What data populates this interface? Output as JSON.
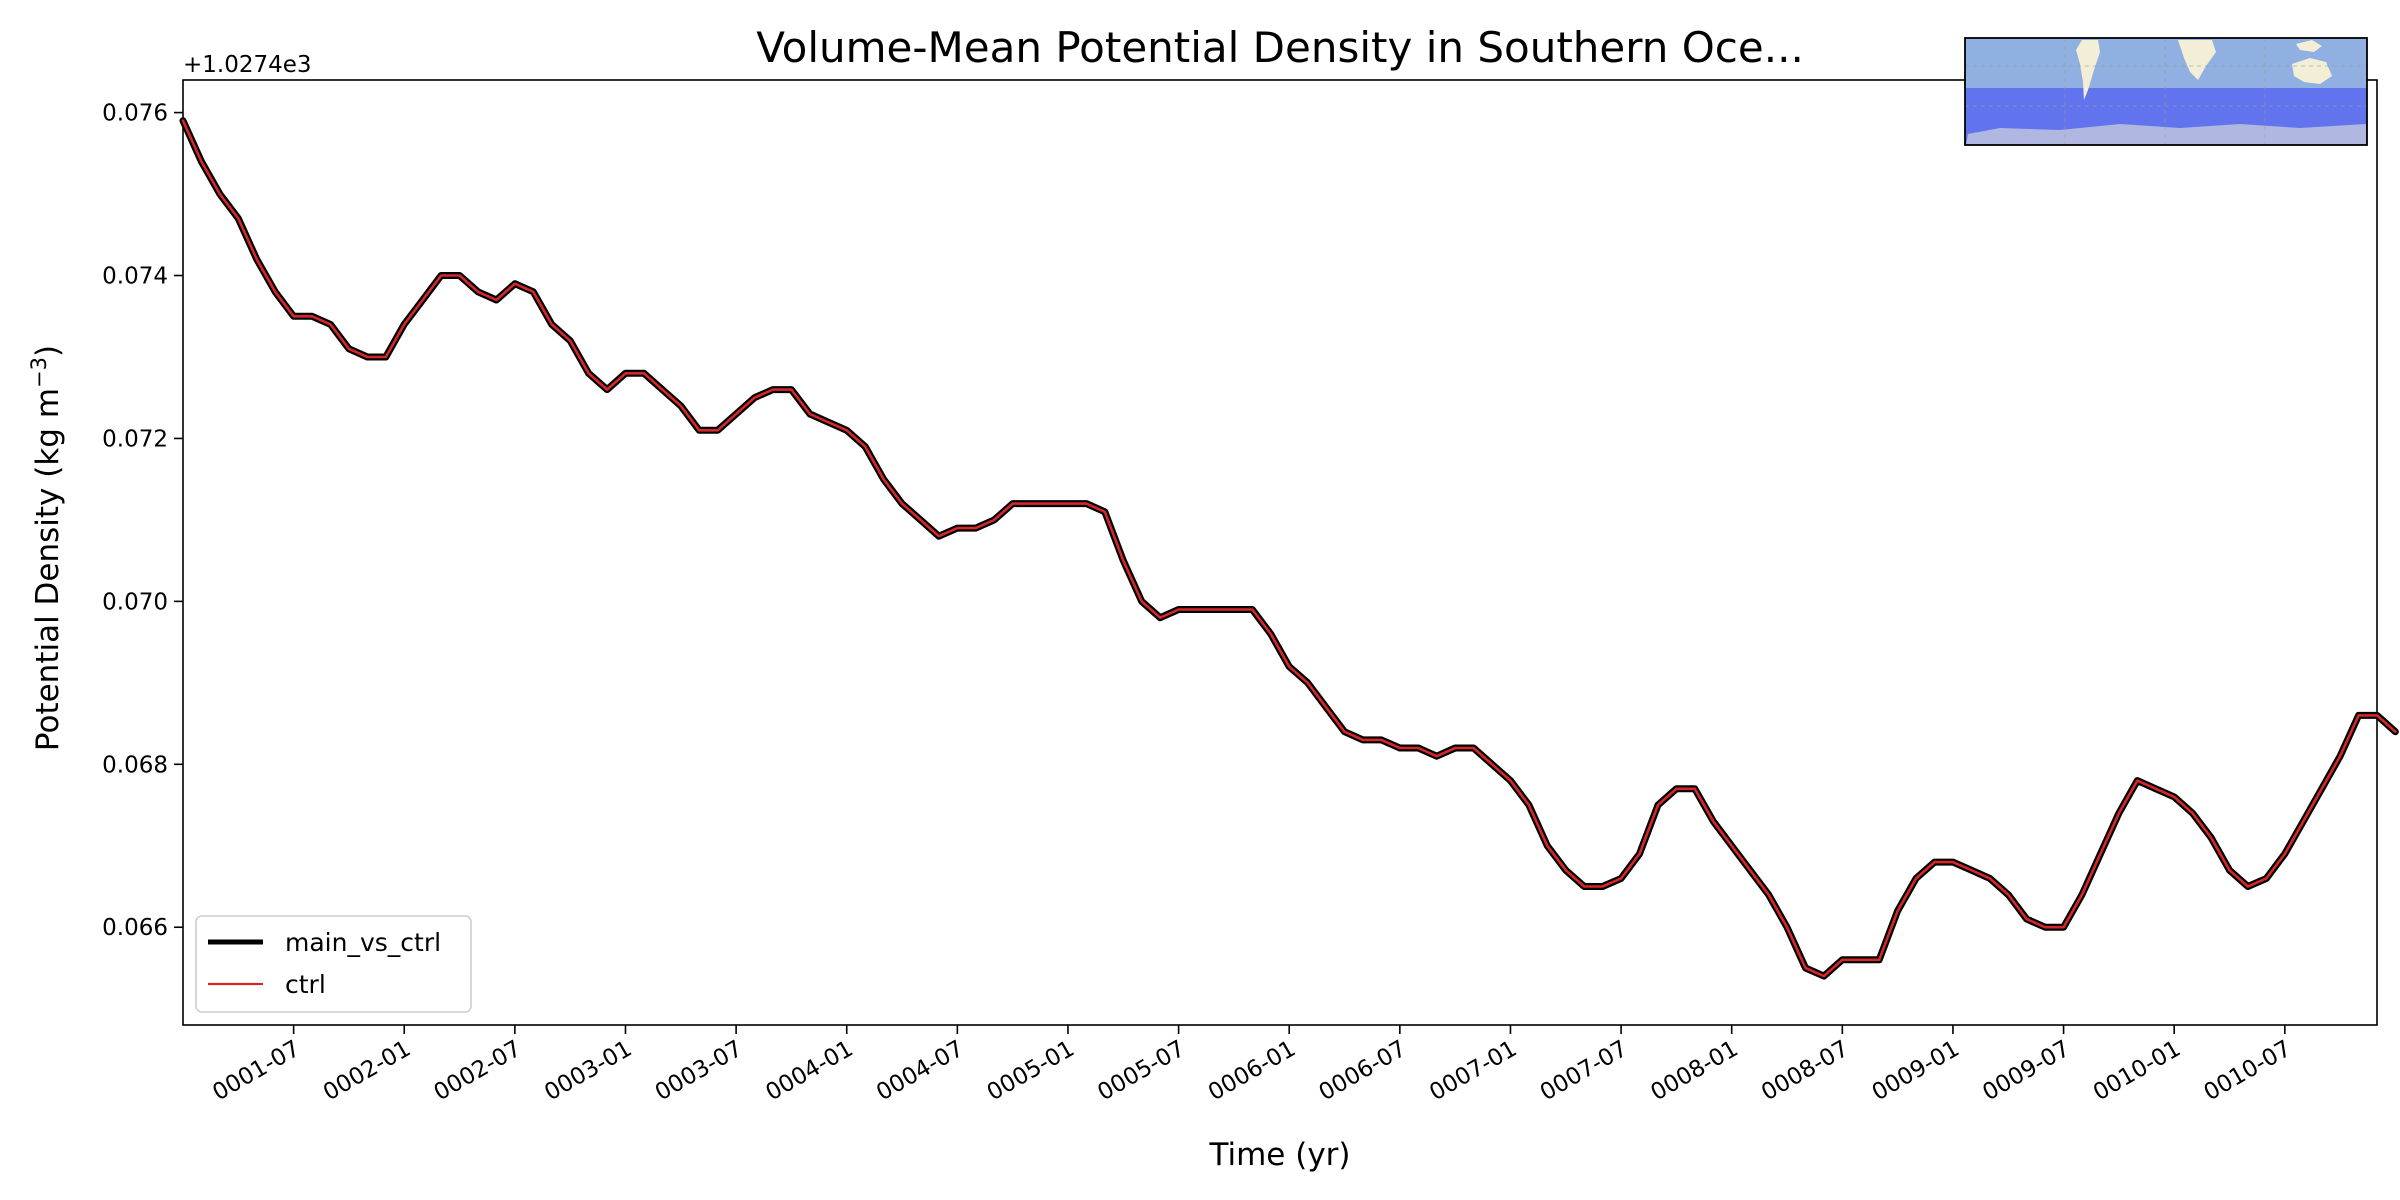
{
  "chart_data": {
    "type": "line",
    "title": "Volume-Mean Potential Density in Southern Oce...",
    "xlabel": "Time (yr)",
    "ylabel": "Potential Density (kg m⁻³)",
    "ylabel_main": "Potential Density (kg m",
    "ylabel_sup": "−3",
    "ylabel_close": ")",
    "offset_text": "+1.0274e3",
    "xlim": [
      0,
      119
    ],
    "ylim": [
      0.0648,
      0.0764
    ],
    "x_ticks": [
      {
        "value": 6,
        "label": "0001-07"
      },
      {
        "value": 12,
        "label": "0002-01"
      },
      {
        "value": 18,
        "label": "0002-07"
      },
      {
        "value": 24,
        "label": "0003-01"
      },
      {
        "value": 30,
        "label": "0003-07"
      },
      {
        "value": 36,
        "label": "0004-01"
      },
      {
        "value": 42,
        "label": "0004-07"
      },
      {
        "value": 48,
        "label": "0005-01"
      },
      {
        "value": 54,
        "label": "0005-07"
      },
      {
        "value": 60,
        "label": "0006-01"
      },
      {
        "value": 66,
        "label": "0006-07"
      },
      {
        "value": 72,
        "label": "0007-01"
      },
      {
        "value": 78,
        "label": "0007-07"
      },
      {
        "value": 84,
        "label": "0008-01"
      },
      {
        "value": 90,
        "label": "0008-07"
      },
      {
        "value": 96,
        "label": "0009-01"
      },
      {
        "value": 102,
        "label": "0009-07"
      },
      {
        "value": 108,
        "label": "0010-01"
      },
      {
        "value": 114,
        "label": "0010-07"
      }
    ],
    "y_ticks": [
      {
        "value": 0.066,
        "label": "0.066"
      },
      {
        "value": 0.068,
        "label": "0.068"
      },
      {
        "value": 0.07,
        "label": "0.070"
      },
      {
        "value": 0.072,
        "label": "0.072"
      },
      {
        "value": 0.074,
        "label": "0.074"
      },
      {
        "value": 0.076,
        "label": "0.076"
      }
    ],
    "series": [
      {
        "name": "main_vs_ctrl",
        "color": "#000000",
        "values": [
          0.0759,
          0.0754,
          0.075,
          0.0747,
          0.0742,
          0.0738,
          0.0735,
          0.0735,
          0.0734,
          0.0731,
          0.073,
          0.073,
          0.0734,
          0.0737,
          0.074,
          0.074,
          0.0738,
          0.0737,
          0.0739,
          0.0738,
          0.0734,
          0.0732,
          0.0728,
          0.0726,
          0.0728,
          0.0728,
          0.0726,
          0.0724,
          0.0721,
          0.0721,
          0.0723,
          0.0725,
          0.0726,
          0.0726,
          0.0723,
          0.0722,
          0.0721,
          0.0719,
          0.0715,
          0.0712,
          0.071,
          0.0708,
          0.0709,
          0.0709,
          0.071,
          0.0712,
          0.0712,
          0.0712,
          0.0712,
          0.0712,
          0.0711,
          0.0705,
          0.07,
          0.0698,
          0.0699,
          0.0699,
          0.0699,
          0.0699,
          0.0699,
          0.0696,
          0.0692,
          0.069,
          0.0687,
          0.0684,
          0.0683,
          0.0683,
          0.0682,
          0.0682,
          0.0681,
          0.0682,
          0.0682,
          0.068,
          0.0678,
          0.0675,
          0.067,
          0.0667,
          0.0665,
          0.0665,
          0.0666,
          0.0669,
          0.0675,
          0.0677,
          0.0677,
          0.0673,
          0.067,
          0.0667,
          0.0664,
          0.066,
          0.0655,
          0.0654,
          0.0656,
          0.0656,
          0.0656,
          0.0662,
          0.0666,
          0.0668,
          0.0668,
          0.0667,
          0.0666,
          0.0664,
          0.0661,
          0.066,
          0.066,
          0.0664,
          0.0669,
          0.0674,
          0.0678,
          0.0677,
          0.0676,
          0.0674,
          0.0671,
          0.0667,
          0.0665,
          0.0666,
          0.0669,
          0.0673,
          0.0677,
          0.0681,
          0.0686,
          0.0686,
          0.0684
        ]
      },
      {
        "name": "ctrl",
        "color": "#d62728",
        "values": [
          0.0759,
          0.0754,
          0.075,
          0.0747,
          0.0742,
          0.0738,
          0.0735,
          0.0735,
          0.0734,
          0.0731,
          0.073,
          0.073,
          0.0734,
          0.0737,
          0.074,
          0.074,
          0.0738,
          0.0737,
          0.0739,
          0.0738,
          0.0734,
          0.0732,
          0.0728,
          0.0726,
          0.0728,
          0.0728,
          0.0726,
          0.0724,
          0.0721,
          0.0721,
          0.0723,
          0.0725,
          0.0726,
          0.0726,
          0.0723,
          0.0722,
          0.0721,
          0.0719,
          0.0715,
          0.0712,
          0.071,
          0.0708,
          0.0709,
          0.0709,
          0.071,
          0.0712,
          0.0712,
          0.0712,
          0.0712,
          0.0712,
          0.0711,
          0.0705,
          0.07,
          0.0698,
          0.0699,
          0.0699,
          0.0699,
          0.0699,
          0.0699,
          0.0696,
          0.0692,
          0.069,
          0.0687,
          0.0684,
          0.0683,
          0.0683,
          0.0682,
          0.0682,
          0.0681,
          0.0682,
          0.0682,
          0.068,
          0.0678,
          0.0675,
          0.067,
          0.0667,
          0.0665,
          0.0665,
          0.0666,
          0.0669,
          0.0675,
          0.0677,
          0.0677,
          0.0673,
          0.067,
          0.0667,
          0.0664,
          0.066,
          0.0655,
          0.0654,
          0.0656,
          0.0656,
          0.0656,
          0.0662,
          0.0666,
          0.0668,
          0.0668,
          0.0667,
          0.0666,
          0.0664,
          0.0661,
          0.066,
          0.066,
          0.0664,
          0.0669,
          0.0674,
          0.0678,
          0.0677,
          0.0676,
          0.0674,
          0.0671,
          0.0667,
          0.0665,
          0.0666,
          0.0669,
          0.0673,
          0.0677,
          0.0681,
          0.0686,
          0.0686,
          0.0684
        ]
      }
    ],
    "legend": {
      "location": "lower-left",
      "entries": [
        "main_vs_ctrl",
        "ctrl"
      ]
    },
    "inset_map": {
      "location": "top-right",
      "region": "Southern Ocean",
      "ocean_color": "#8fb0e0",
      "region_color": "#5c6ef0",
      "land_color": "#f2efd6"
    }
  }
}
